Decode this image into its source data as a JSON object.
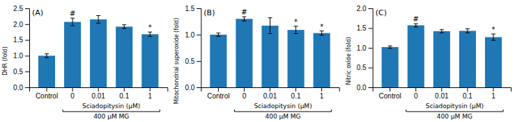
{
  "chart_data": [
    {
      "type": "bar",
      "title": "(A)",
      "y_label": "DHR (fold)",
      "x_label": "Sciadopitysin (μM)",
      "annotations": [
        "400 μM MG"
      ],
      "categories": [
        "Control",
        "0",
        "0.01",
        "0.1",
        "1"
      ],
      "values": [
        1.0,
        2.07,
        2.15,
        1.92,
        1.68
      ],
      "errors": [
        0.06,
        0.12,
        0.12,
        0.06,
        0.07
      ],
      "sig_labels": [
        null,
        "#",
        null,
        null,
        "*"
      ],
      "ylim": [
        0.0,
        2.5
      ],
      "yticks": [
        {
          "value": 0.0,
          "label": "0.0"
        },
        0.5,
        {
          "value": 1.0,
          "label": "1.0"
        },
        1.5,
        {
          "value": 2.0,
          "label": "2.0"
        },
        2.5
      ]
    },
    {
      "type": "bar",
      "title": "(B)",
      "y_label": "Mitochondrial superoxide (fold)",
      "x_label": "Sciadopitysin (μM)",
      "annotations": [
        "400 μM MG"
      ],
      "categories": [
        "Control",
        "0",
        "0.01",
        "0.1",
        "1"
      ],
      "values": [
        1.0,
        1.3,
        1.17,
        1.09,
        1.03
      ],
      "errors": [
        0.03,
        0.04,
        0.15,
        0.07,
        0.04
      ],
      "sig_labels": [
        null,
        "#",
        null,
        "*",
        "*"
      ],
      "ylim": [
        0.0,
        1.5
      ],
      "yticks": [
        {
          "value": 0.0,
          "label": "0.0"
        },
        0.5,
        {
          "value": 1.0,
          "label": "1.0"
        },
        1.5
      ]
    },
    {
      "type": "bar",
      "title": "(C)",
      "y_label": "Nitric oxide (fold)",
      "x_label": "Sciadopitysin (μM)",
      "annotations": [
        "400 μM MG"
      ],
      "categories": [
        "Control",
        "0",
        "0.01",
        "0.1",
        "1"
      ],
      "values": [
        1.02,
        1.57,
        1.42,
        1.43,
        1.27
      ],
      "errors": [
        0.03,
        0.04,
        0.04,
        0.05,
        0.08
      ],
      "sig_labels": [
        null,
        "#",
        null,
        null,
        "*"
      ],
      "ylim": [
        0.0,
        2.0
      ],
      "yticks": [
        {
          "value": 0.0,
          "label": "0.0"
        },
        0.5,
        {
          "value": 1.0,
          "label": "1.0"
        },
        1.5,
        {
          "value": 2.0,
          "label": "2.0"
        }
      ]
    }
  ]
}
